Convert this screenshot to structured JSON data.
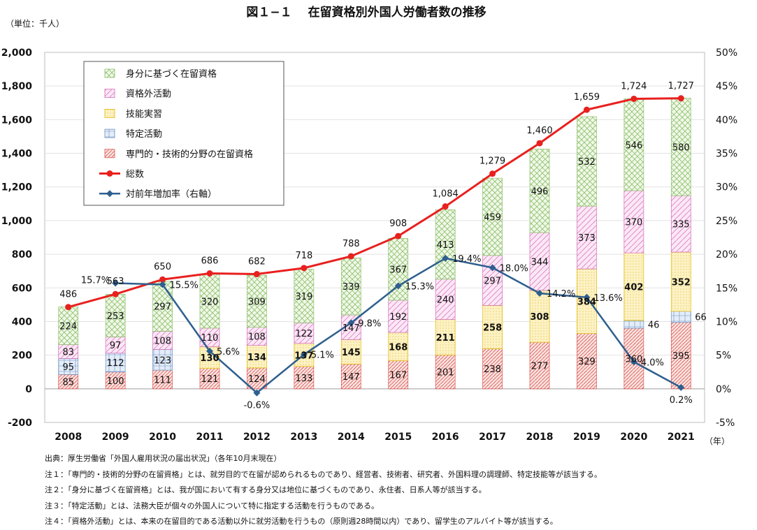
{
  "chart_data": {
    "type": "bar",
    "title": "図１−１　 在留資格別外国人労働者数の推移",
    "unit_label": "（単位：千人）",
    "x_unit": "（年）",
    "categories": [
      "2008",
      "2009",
      "2010",
      "2011",
      "2012",
      "2013",
      "2014",
      "2015",
      "2016",
      "2017",
      "2018",
      "2019",
      "2020",
      "2021"
    ],
    "series": [
      {
        "name": "専門的・技術的分野の在留資格",
        "values": [
          85,
          100,
          111,
          121,
          124,
          133,
          147,
          167,
          201,
          238,
          277,
          329,
          360,
          395
        ],
        "color": "#d9534f"
      },
      {
        "name": "特定活動",
        "values": [
          95,
          112,
          123,
          null,
          null,
          null,
          null,
          null,
          null,
          null,
          null,
          null,
          46,
          66
        ],
        "color": "#6b8fc0"
      },
      {
        "name": "技能実習",
        "values": [
          null,
          null,
          null,
          130,
          134,
          137,
          145,
          168,
          211,
          258,
          308,
          384,
          402,
          352
        ],
        "color": "#e0b800"
      },
      {
        "name": "資格外活動",
        "values": [
          83,
          97,
          108,
          110,
          108,
          122,
          147,
          192,
          240,
          297,
          344,
          373,
          370,
          335
        ],
        "color": "#d46ab8"
      },
      {
        "name": "身分に基づく在留資格",
        "values": [
          224,
          253,
          297,
          320,
          309,
          319,
          339,
          367,
          413,
          459,
          496,
          532,
          546,
          580
        ],
        "color": "#8cc06b"
      }
    ],
    "totals": {
      "name": "総数",
      "values": [
        486,
        563,
        650,
        686,
        682,
        718,
        788,
        908,
        1084,
        1279,
        1460,
        1659,
        1724,
        1727
      ],
      "color": "#e8201e"
    },
    "growth": {
      "name": "対前年増加率（右軸）",
      "values": [
        null,
        15.7,
        15.5,
        5.6,
        -0.6,
        5.1,
        9.8,
        15.3,
        19.4,
        18.0,
        14.2,
        13.6,
        4.0,
        0.2
      ],
      "labels": [
        null,
        "15.7%",
        "15.5%",
        "5.6%",
        "-0.6%",
        "5.1%",
        "9.8%",
        "15.3%",
        "19.4%",
        "18.0%",
        "14.2%",
        "13.6%",
        "4.0%",
        "0.2%"
      ],
      "color": "#2e5f8e"
    },
    "y_left": {
      "min": -200,
      "max": 2000,
      "ticks": [
        -200,
        0,
        200,
        400,
        600,
        800,
        1000,
        1200,
        1400,
        1600,
        1800,
        2000
      ],
      "tick_labels": [
        "-200",
        "0",
        "200",
        "400",
        "600",
        "800",
        "1,000",
        "1,200",
        "1,400",
        "1,600",
        "1,800",
        "2,000"
      ]
    },
    "y_right": {
      "min": -5,
      "max": 50,
      "ticks": [
        -5,
        0,
        5,
        10,
        15,
        20,
        25,
        30,
        35,
        40,
        45,
        50
      ],
      "tick_labels": [
        "-5%",
        "0%",
        "5%",
        "10%",
        "15%",
        "20%",
        "25%",
        "30%",
        "35%",
        "40%",
        "45%",
        "50%"
      ]
    },
    "total_labels": [
      "486",
      "563",
      "650",
      "686",
      "682",
      "718",
      "788",
      "908",
      "1,084",
      "1,279",
      "1,460",
      "1,659",
      "1,724",
      "1,727"
    ],
    "legend": [
      "身分に基づく在留資格",
      "資格外活動",
      "技能実習",
      "特定活動",
      "専門的・技術的分野の在留資格",
      "総数",
      "対前年増加率（右軸）"
    ],
    "legend_position": "top-left",
    "grid": true
  },
  "notes": {
    "source": "出典：厚生労働省「外国人雇用状況の届出状況」（各年10月末現在）",
    "note1": "注１：「専門的・技術的分野の在留資格」とは、就労目的で在留が認められるものであり、経営者、技術者、研究者、外国料理の調理師、特定技能等が該当する。",
    "note2": "注２：「身分に基づく在留資格」とは、我が国において有する身分又は地位に基づくものであり、永住者、日系人等が該当する。",
    "note3": "注３：「特定活動」とは、法務大臣が個々の外国人について特に指定する活動を行うものである。",
    "note4": "注４：「資格外活動」とは、本来の在留目的である活動以外に就労活動を行うもの（原則週28時間以内）であり、留学生のアルバイト等が該当する。"
  }
}
